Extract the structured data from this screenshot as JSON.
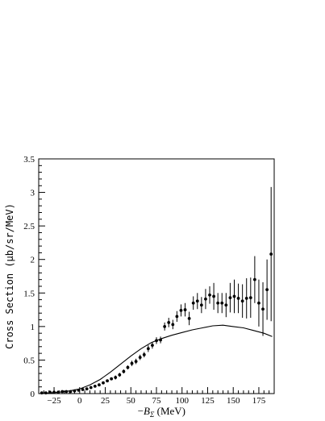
{
  "chart_data": {
    "type": "scatter",
    "title": "",
    "xlabel_prefix": "−",
    "xlabel_symbol": "B",
    "xlabel_subscript": "Σ",
    "xlabel_suffix": " (MeV)",
    "ylabel": "Cross Section (μb/sr/MeV)",
    "xlim": [
      -40,
      190
    ],
    "ylim": [
      0,
      3.5
    ],
    "xticks": [
      -25,
      0,
      25,
      50,
      75,
      100,
      125,
      150,
      175
    ],
    "yticks": [
      0,
      0.5,
      1,
      1.5,
      2,
      2.5,
      3,
      3.5
    ],
    "ytick_labels": [
      "0",
      "0.5",
      "1",
      "1.5",
      "2",
      "2.5",
      "3",
      "3.5"
    ],
    "grid": false,
    "series": [
      {
        "kind": "points_with_error_bars",
        "x": [
          -37,
          -33,
          -29,
          -25,
          -21,
          -17,
          -13,
          -9,
          -5,
          -1,
          3,
          7,
          11,
          15,
          19,
          23,
          27,
          31,
          35,
          39,
          43,
          47,
          51,
          55,
          59,
          63,
          67,
          71,
          75,
          79,
          83,
          87,
          91,
          95,
          99,
          103,
          107,
          111,
          115,
          119,
          123,
          127,
          131,
          135,
          139,
          143,
          147,
          151,
          155,
          159,
          163,
          167,
          171,
          175,
          179,
          183,
          187
        ],
        "y": [
          0.01,
          0.01,
          0.02,
          0.02,
          0.02,
          0.03,
          0.03,
          0.03,
          0.04,
          0.05,
          0.06,
          0.07,
          0.09,
          0.11,
          0.13,
          0.16,
          0.19,
          0.22,
          0.24,
          0.28,
          0.33,
          0.39,
          0.45,
          0.48,
          0.54,
          0.58,
          0.67,
          0.72,
          0.79,
          0.8,
          1.0,
          1.06,
          1.03,
          1.15,
          1.24,
          1.25,
          1.12,
          1.35,
          1.38,
          1.32,
          1.41,
          1.47,
          1.45,
          1.35,
          1.35,
          1.32,
          1.43,
          1.45,
          1.42,
          1.38,
          1.42,
          1.43,
          1.7,
          1.35,
          1.26,
          1.55,
          2.08
        ],
        "yerr": [
          0.01,
          0.01,
          0.01,
          0.01,
          0.01,
          0.01,
          0.01,
          0.01,
          0.01,
          0.01,
          0.01,
          0.01,
          0.02,
          0.02,
          0.02,
          0.02,
          0.02,
          0.02,
          0.03,
          0.03,
          0.03,
          0.03,
          0.04,
          0.04,
          0.04,
          0.04,
          0.05,
          0.05,
          0.05,
          0.05,
          0.06,
          0.07,
          0.07,
          0.08,
          0.09,
          0.1,
          0.1,
          0.1,
          0.12,
          0.12,
          0.15,
          0.13,
          0.2,
          0.15,
          0.15,
          0.18,
          0.22,
          0.25,
          0.22,
          0.25,
          0.3,
          0.3,
          0.35,
          0.35,
          0.4,
          0.45,
          1.0
        ]
      },
      {
        "kind": "curve",
        "x": [
          -40,
          -30,
          -20,
          -10,
          0,
          10,
          20,
          30,
          40,
          50,
          60,
          70,
          80,
          90,
          100,
          110,
          120,
          130,
          140,
          150,
          160,
          170,
          180,
          188
        ],
        "y": [
          0.0,
          0.01,
          0.02,
          0.04,
          0.07,
          0.13,
          0.21,
          0.32,
          0.44,
          0.56,
          0.67,
          0.76,
          0.82,
          0.87,
          0.91,
          0.95,
          0.98,
          1.01,
          1.02,
          1.0,
          0.98,
          0.94,
          0.9,
          0.85
        ]
      }
    ]
  }
}
